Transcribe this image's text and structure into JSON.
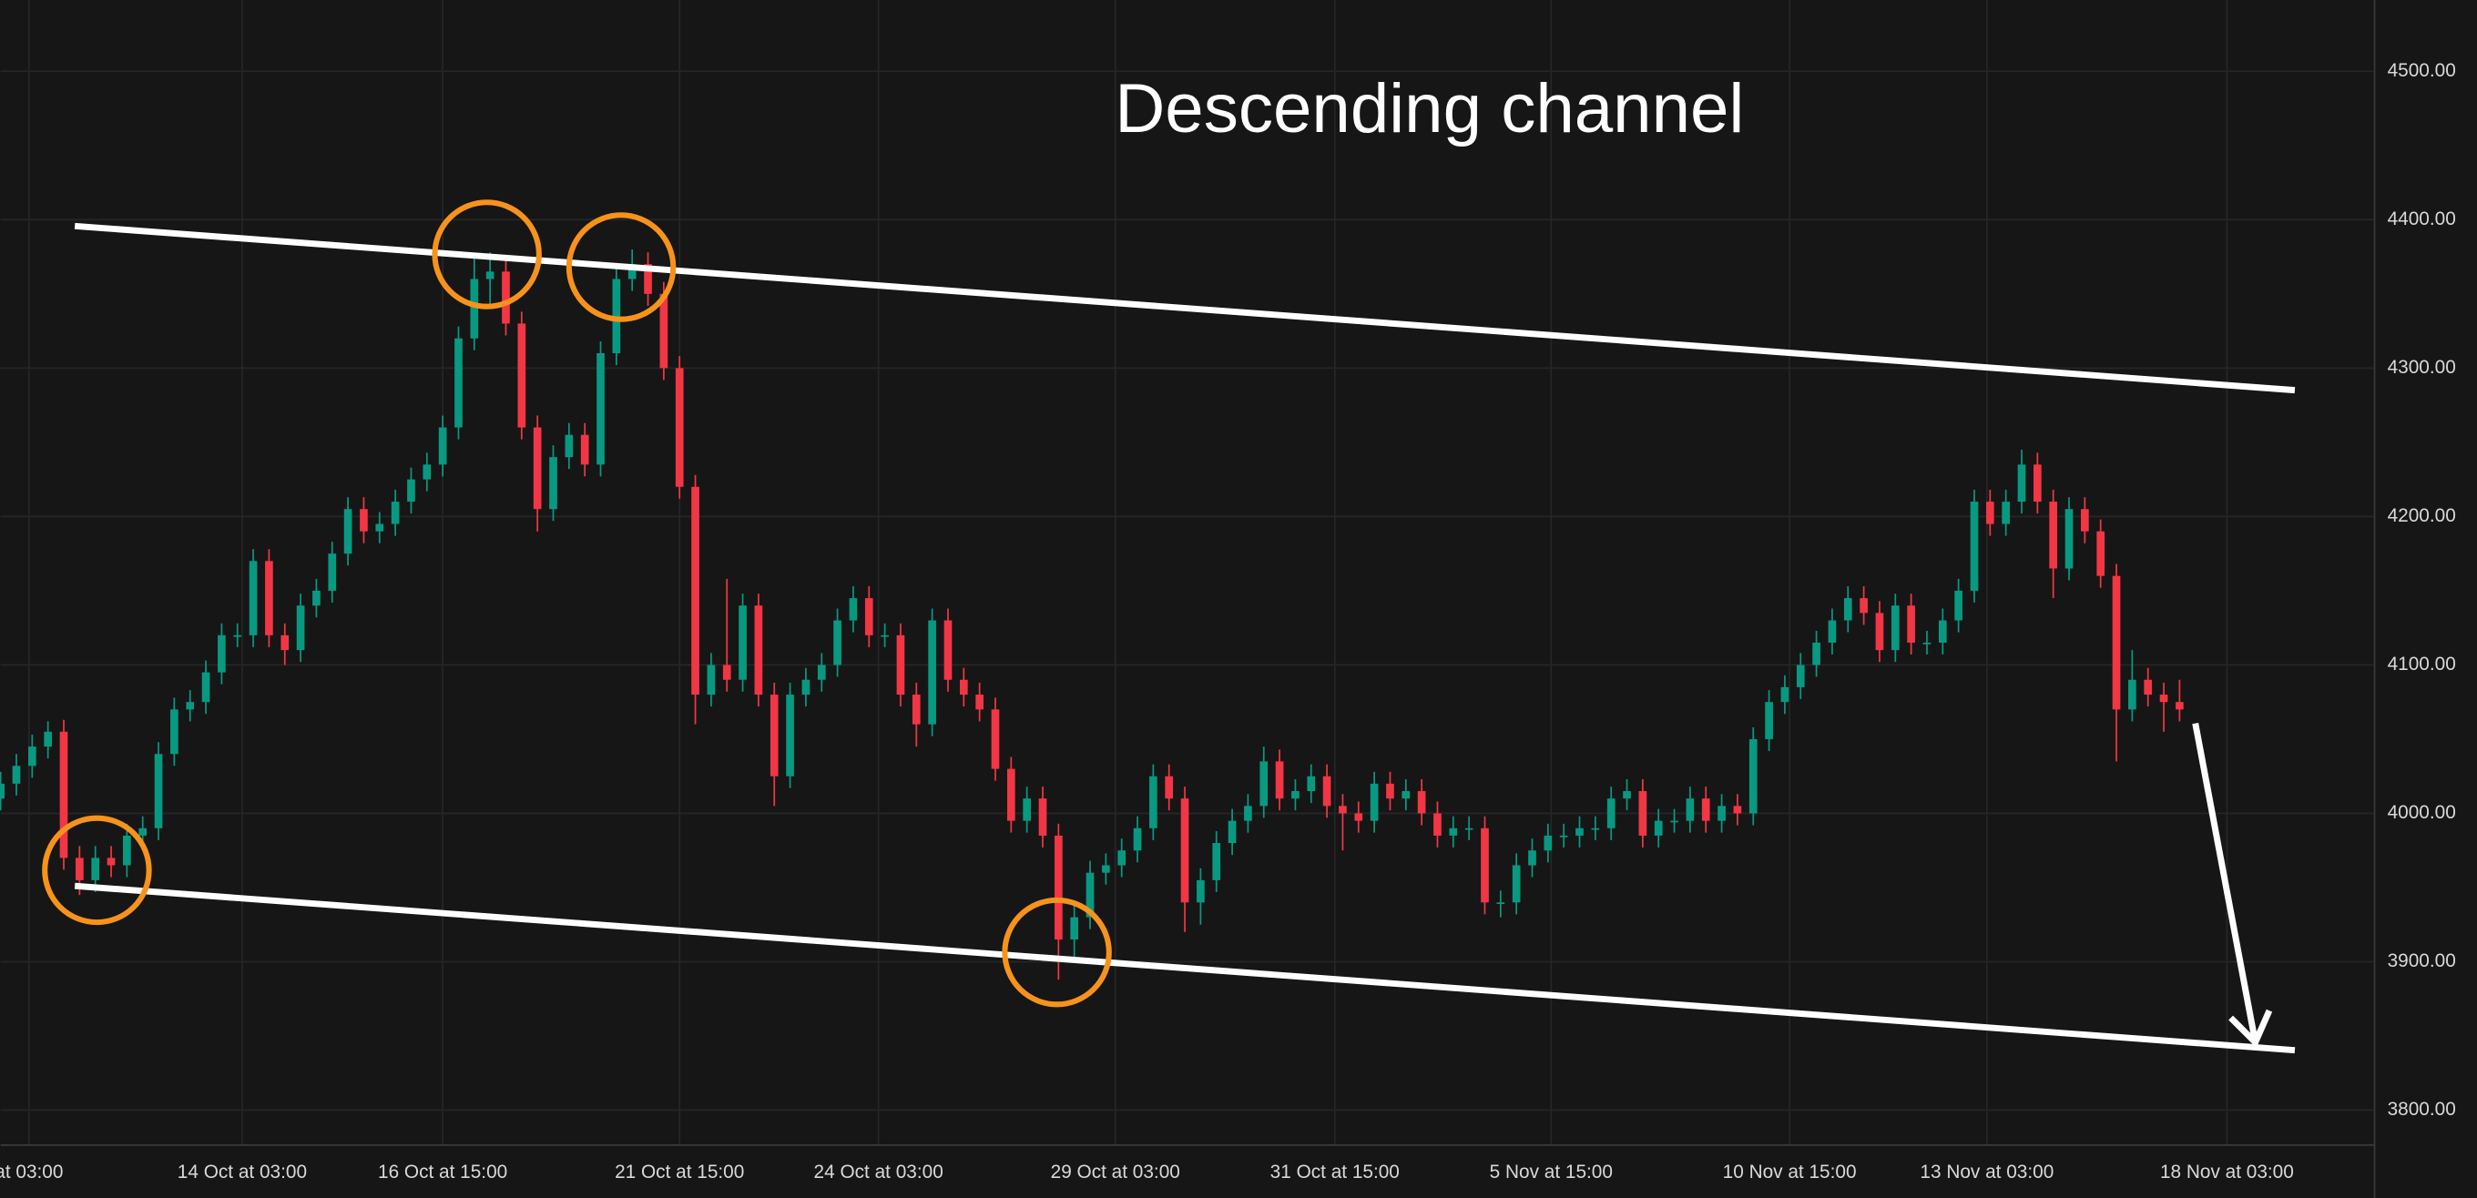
{
  "chart_data": {
    "type": "candlestick",
    "title": "Descending channel",
    "up_color": "#089981",
    "down_color": "#f23645",
    "background": "#161616",
    "grid": true,
    "open": [
      4010,
      4020,
      4032,
      4045,
      4055,
      3970,
      3955,
      3970,
      3965,
      3985,
      3990,
      4040,
      4070,
      4075,
      4095,
      4120,
      4120,
      4170,
      4120,
      4110,
      4140,
      4150,
      4175,
      4205,
      4190,
      4195,
      4210,
      4225,
      4235,
      4260,
      4320,
      4360,
      4365,
      4330,
      4260,
      4205,
      4240,
      4255,
      4235,
      4310,
      4360,
      4370,
      4350,
      4300,
      4220,
      4080,
      4100,
      4090,
      4140,
      4080,
      4025,
      4080,
      4090,
      4100,
      4130,
      4145,
      4120,
      4120,
      4080,
      4060,
      4130,
      4090,
      4080,
      4070,
      4030,
      3995,
      4010,
      3985,
      3915,
      3930,
      3960,
      3965,
      3975,
      3990,
      4025,
      4010,
      3940,
      3955,
      3980,
      3995,
      4005,
      4035,
      4010,
      4015,
      4025,
      4005,
      4000,
      3995,
      4020,
      4010,
      4015,
      4000,
      3985,
      3990,
      3990,
      3940,
      3940,
      3965,
      3975,
      3985,
      3985,
      3990,
      3990,
      4010,
      4015,
      3985,
      3995,
      3995,
      4010,
      3995,
      4005,
      4000,
      4050,
      4075,
      4085,
      4100,
      4115,
      4130,
      4145,
      4135,
      4110,
      4140,
      4115,
      4115,
      4130,
      4150,
      4210,
      4195,
      4210,
      4235,
      4210,
      4165,
      4205,
      4190,
      4160,
      4070,
      4090,
      4080,
      4075
    ],
    "high": [
      4028,
      4040,
      4053,
      4062,
      4063,
      3978,
      3978,
      3978,
      3993,
      3998,
      4048,
      4078,
      4083,
      4103,
      4128,
      4128,
      4178,
      4178,
      4128,
      4148,
      4158,
      4183,
      4213,
      4213,
      4203,
      4218,
      4233,
      4243,
      4268,
      4328,
      4375,
      4378,
      4373,
      4338,
      4268,
      4248,
      4263,
      4263,
      4318,
      4368,
      4380,
      4378,
      4358,
      4308,
      4228,
      4108,
      4158,
      4148,
      4148,
      4088,
      4088,
      4098,
      4108,
      4138,
      4153,
      4153,
      4128,
      4128,
      4088,
      4138,
      4138,
      4098,
      4088,
      4078,
      4038,
      4018,
      4018,
      3993,
      3938,
      3968,
      3973,
      3983,
      3998,
      4033,
      4033,
      4018,
      3963,
      3988,
      4003,
      4013,
      4045,
      4043,
      4023,
      4033,
      4033,
      4013,
      4008,
      4028,
      4028,
      4023,
      4023,
      4008,
      3998,
      3998,
      3998,
      3948,
      3973,
      3983,
      3993,
      3993,
      3998,
      3998,
      4018,
      4023,
      4023,
      4003,
      4003,
      4018,
      4018,
      4013,
      4013,
      4058,
      4083,
      4093,
      4108,
      4123,
      4138,
      4153,
      4153,
      4143,
      4148,
      4148,
      4123,
      4138,
      4158,
      4218,
      4218,
      4218,
      4245,
      4243,
      4218,
      4213,
      4213,
      4198,
      4168,
      4110,
      4098,
      4088,
      4090
    ],
    "low": [
      4002,
      4012,
      4024,
      4037,
      3962,
      3945,
      3947,
      3957,
      3957,
      3977,
      3982,
      4032,
      4062,
      4067,
      4087,
      4112,
      4112,
      4112,
      4100,
      4102,
      4132,
      4142,
      4167,
      4182,
      4182,
      4187,
      4202,
      4217,
      4227,
      4252,
      4312,
      4340,
      4322,
      4252,
      4190,
      4197,
      4232,
      4227,
      4227,
      4302,
      4352,
      4342,
      4292,
      4212,
      4060,
      4072,
      4082,
      4082,
      4072,
      4005,
      4017,
      4072,
      4082,
      4092,
      4122,
      4112,
      4112,
      4072,
      4045,
      4052,
      4082,
      4072,
      4062,
      4022,
      3987,
      3987,
      3977,
      3888,
      3900,
      3922,
      3952,
      3957,
      3967,
      3982,
      4002,
      3920,
      3925,
      3947,
      3972,
      3987,
      3997,
      4002,
      4002,
      4007,
      3997,
      3975,
      3987,
      3987,
      4002,
      4002,
      3992,
      3977,
      3977,
      3982,
      3932,
      3930,
      3932,
      3957,
      3967,
      3977,
      3977,
      3982,
      3982,
      4002,
      3977,
      3977,
      3987,
      3987,
      3987,
      3987,
      3992,
      3992,
      4042,
      4067,
      4077,
      4092,
      4107,
      4122,
      4127,
      4102,
      4102,
      4107,
      4107,
      4107,
      4122,
      4142,
      4187,
      4187,
      4202,
      4202,
      4145,
      4157,
      4182,
      4152,
      4035,
      4062,
      4072,
      4055,
      4062
    ],
    "close": [
      4020,
      4032,
      4045,
      4055,
      3970,
      3955,
      3970,
      3965,
      3985,
      3990,
      4040,
      4070,
      4075,
      4095,
      4120,
      4120,
      4170,
      4120,
      4110,
      4140,
      4150,
      4175,
      4205,
      4190,
      4195,
      4210,
      4225,
      4235,
      4260,
      4320,
      4360,
      4365,
      4330,
      4260,
      4205,
      4240,
      4255,
      4235,
      4310,
      4360,
      4370,
      4350,
      4300,
      4220,
      4080,
      4100,
      4090,
      4140,
      4080,
      4025,
      4080,
      4090,
      4100,
      4130,
      4145,
      4120,
      4120,
      4080,
      4060,
      4130,
      4090,
      4080,
      4070,
      4030,
      3995,
      4010,
      3985,
      3915,
      3930,
      3960,
      3965,
      3975,
      3990,
      4025,
      4010,
      3940,
      3955,
      3980,
      3995,
      4005,
      4035,
      4010,
      4015,
      4025,
      4005,
      4000,
      3995,
      4020,
      4010,
      4015,
      4000,
      3985,
      3990,
      3990,
      3940,
      3940,
      3965,
      3975,
      3985,
      3985,
      3990,
      3990,
      4010,
      4015,
      3985,
      3995,
      3995,
      4010,
      3995,
      4005,
      4000,
      4050,
      4075,
      4085,
      4100,
      4115,
      4130,
      4145,
      4135,
      4110,
      4140,
      4115,
      4115,
      4130,
      4150,
      4210,
      4195,
      4210,
      4235,
      4210,
      4165,
      4205,
      4190,
      4160,
      4070,
      4090,
      4080,
      4075,
      4070
    ],
    "xlim": [
      0,
      150.3
    ],
    "ylim": [
      3777,
      4548
    ],
    "yticks": [
      {
        "value": 3800,
        "label": "3800.00"
      },
      {
        "value": 3900,
        "label": "3900.00"
      },
      {
        "value": 4000,
        "label": "4000.00"
      },
      {
        "value": 4100,
        "label": "4100.00"
      },
      {
        "value": 4200,
        "label": "4200.00"
      },
      {
        "value": 4300,
        "label": "4300.00"
      },
      {
        "value": 4400,
        "label": "4400.00"
      },
      {
        "value": 4500,
        "label": "4500.00"
      }
    ],
    "xticks": [
      {
        "value": 1.8,
        "label": "at 03:00"
      },
      {
        "value": 15.3,
        "label": "14 Oct at 03:00"
      },
      {
        "value": 28,
        "label": "16 Oct at 15:00"
      },
      {
        "value": 43,
        "label": "21 Oct at 15:00"
      },
      {
        "value": 55.6,
        "label": "24 Oct at 03:00"
      },
      {
        "value": 70.6,
        "label": "29 Oct at 03:00"
      },
      {
        "value": 84.5,
        "label": "31 Oct at 15:00"
      },
      {
        "value": 98.2,
        "label": "5 Nov at 15:00"
      },
      {
        "value": 113.3,
        "label": "10 Nov at 15:00"
      },
      {
        "value": 125.8,
        "label": "13 Nov at 03:00"
      },
      {
        "value": 141,
        "label": "18 Nov at 03:00"
      }
    ],
    "trendlines": [
      {
        "x": [
          4.7,
          145.3
        ],
        "y": [
          4395.7,
          4285.1
        ]
      },
      {
        "x": [
          4.7,
          145.3
        ],
        "y": [
          3951.1,
          3840.4
        ]
      }
    ],
    "circles": [
      {
        "x": 30.8,
        "y": 4376.6
      },
      {
        "x": 39.3,
        "y": 4368
      },
      {
        "x": 6.1,
        "y": 3961.7
      },
      {
        "x": 66.9,
        "y": 3906.4
      }
    ],
    "circle_color": "#f7931a",
    "arrow": {
      "x": [
        139.0,
        142.8
      ],
      "y": [
        4060.6,
        3845.7
      ]
    }
  }
}
